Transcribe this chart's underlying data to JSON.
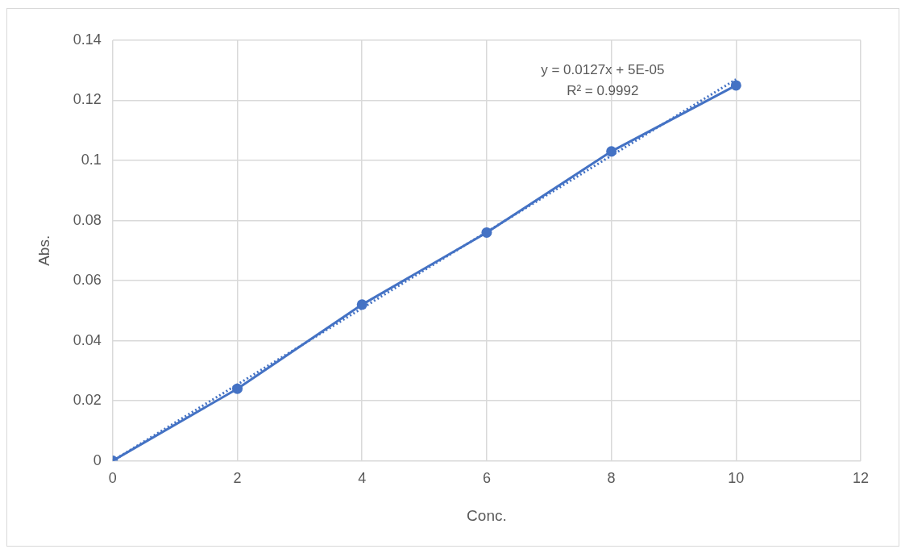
{
  "chart_data": {
    "type": "scatter",
    "xlabel": "Conc.",
    "ylabel": "Abs.",
    "series": [
      {
        "type": "line",
        "color": "#4472c4",
        "x": [
          0,
          2,
          4,
          6,
          8,
          10
        ],
        "values": [
          0,
          0.024,
          0.052,
          0.076,
          0.103,
          0.125
        ],
        "marker": "circle",
        "line_style": "solid"
      },
      {
        "type": "line",
        "color": "#4472c4",
        "x": [
          0,
          10
        ],
        "values": [
          0,
          0.127
        ],
        "marker": "none",
        "line_style": "dotted"
      }
    ],
    "annotations": [
      "y = 0.0127x + 5E-05",
      "R² = 0.9992"
    ],
    "xlim": [
      0,
      12
    ],
    "xticks": [
      0,
      2,
      4,
      6,
      8,
      10,
      12
    ],
    "ylim": [
      0,
      0.14
    ],
    "yticks": [
      0,
      0.02,
      0.04,
      0.06,
      0.08,
      0.1,
      0.12,
      0.14
    ],
    "grid": true,
    "legend": false
  }
}
